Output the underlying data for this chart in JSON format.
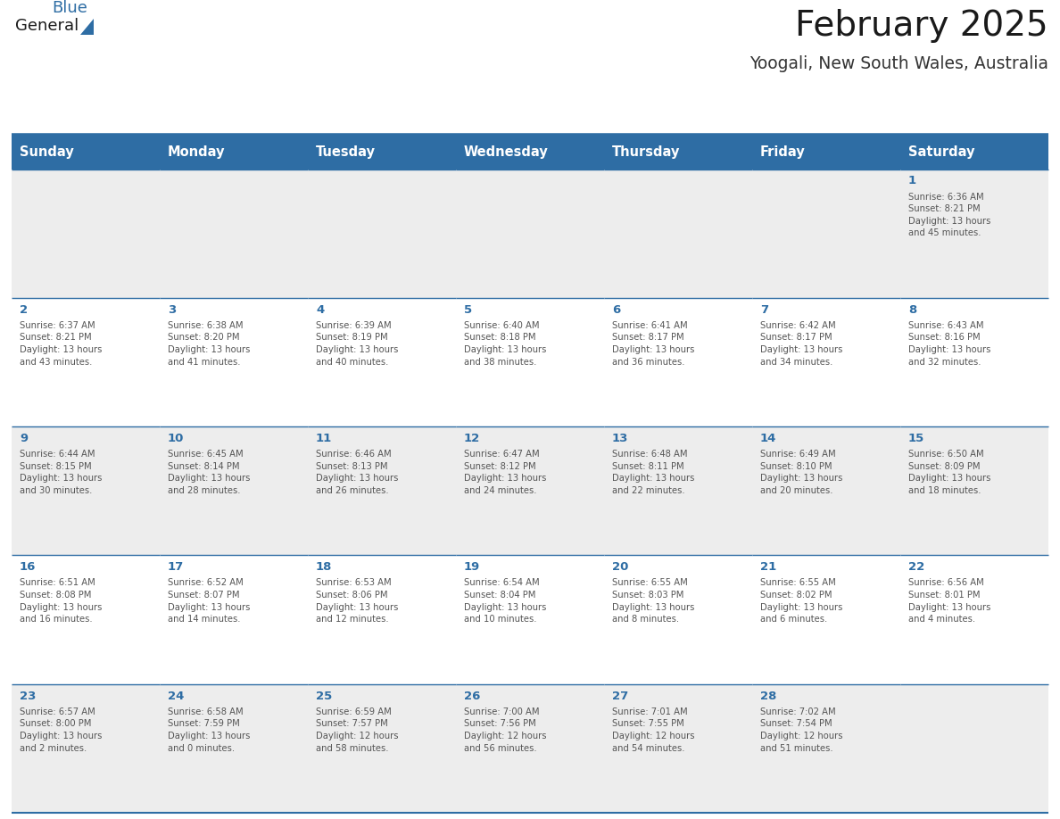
{
  "title": "February 2025",
  "subtitle": "Yoogali, New South Wales, Australia",
  "days_of_week": [
    "Sunday",
    "Monday",
    "Tuesday",
    "Wednesday",
    "Thursday",
    "Friday",
    "Saturday"
  ],
  "header_bg": "#2E6DA4",
  "header_text_color": "#FFFFFF",
  "cell_bg_odd": "#EDEDED",
  "cell_bg_even": "#FFFFFF",
  "border_color": "#2E6DA4",
  "title_color": "#1a1a1a",
  "subtitle_color": "#333333",
  "day_num_color": "#2E6DA4",
  "info_text_color": "#555555",
  "logo_general_color": "#1a1a1a",
  "logo_blue_color": "#2E6DA4",
  "weeks": [
    [
      {
        "day": null,
        "info": ""
      },
      {
        "day": null,
        "info": ""
      },
      {
        "day": null,
        "info": ""
      },
      {
        "day": null,
        "info": ""
      },
      {
        "day": null,
        "info": ""
      },
      {
        "day": null,
        "info": ""
      },
      {
        "day": 1,
        "info": "Sunrise: 6:36 AM\nSunset: 8:21 PM\nDaylight: 13 hours\nand 45 minutes."
      }
    ],
    [
      {
        "day": 2,
        "info": "Sunrise: 6:37 AM\nSunset: 8:21 PM\nDaylight: 13 hours\nand 43 minutes."
      },
      {
        "day": 3,
        "info": "Sunrise: 6:38 AM\nSunset: 8:20 PM\nDaylight: 13 hours\nand 41 minutes."
      },
      {
        "day": 4,
        "info": "Sunrise: 6:39 AM\nSunset: 8:19 PM\nDaylight: 13 hours\nand 40 minutes."
      },
      {
        "day": 5,
        "info": "Sunrise: 6:40 AM\nSunset: 8:18 PM\nDaylight: 13 hours\nand 38 minutes."
      },
      {
        "day": 6,
        "info": "Sunrise: 6:41 AM\nSunset: 8:17 PM\nDaylight: 13 hours\nand 36 minutes."
      },
      {
        "day": 7,
        "info": "Sunrise: 6:42 AM\nSunset: 8:17 PM\nDaylight: 13 hours\nand 34 minutes."
      },
      {
        "day": 8,
        "info": "Sunrise: 6:43 AM\nSunset: 8:16 PM\nDaylight: 13 hours\nand 32 minutes."
      }
    ],
    [
      {
        "day": 9,
        "info": "Sunrise: 6:44 AM\nSunset: 8:15 PM\nDaylight: 13 hours\nand 30 minutes."
      },
      {
        "day": 10,
        "info": "Sunrise: 6:45 AM\nSunset: 8:14 PM\nDaylight: 13 hours\nand 28 minutes."
      },
      {
        "day": 11,
        "info": "Sunrise: 6:46 AM\nSunset: 8:13 PM\nDaylight: 13 hours\nand 26 minutes."
      },
      {
        "day": 12,
        "info": "Sunrise: 6:47 AM\nSunset: 8:12 PM\nDaylight: 13 hours\nand 24 minutes."
      },
      {
        "day": 13,
        "info": "Sunrise: 6:48 AM\nSunset: 8:11 PM\nDaylight: 13 hours\nand 22 minutes."
      },
      {
        "day": 14,
        "info": "Sunrise: 6:49 AM\nSunset: 8:10 PM\nDaylight: 13 hours\nand 20 minutes."
      },
      {
        "day": 15,
        "info": "Sunrise: 6:50 AM\nSunset: 8:09 PM\nDaylight: 13 hours\nand 18 minutes."
      }
    ],
    [
      {
        "day": 16,
        "info": "Sunrise: 6:51 AM\nSunset: 8:08 PM\nDaylight: 13 hours\nand 16 minutes."
      },
      {
        "day": 17,
        "info": "Sunrise: 6:52 AM\nSunset: 8:07 PM\nDaylight: 13 hours\nand 14 minutes."
      },
      {
        "day": 18,
        "info": "Sunrise: 6:53 AM\nSunset: 8:06 PM\nDaylight: 13 hours\nand 12 minutes."
      },
      {
        "day": 19,
        "info": "Sunrise: 6:54 AM\nSunset: 8:04 PM\nDaylight: 13 hours\nand 10 minutes."
      },
      {
        "day": 20,
        "info": "Sunrise: 6:55 AM\nSunset: 8:03 PM\nDaylight: 13 hours\nand 8 minutes."
      },
      {
        "day": 21,
        "info": "Sunrise: 6:55 AM\nSunset: 8:02 PM\nDaylight: 13 hours\nand 6 minutes."
      },
      {
        "day": 22,
        "info": "Sunrise: 6:56 AM\nSunset: 8:01 PM\nDaylight: 13 hours\nand 4 minutes."
      }
    ],
    [
      {
        "day": 23,
        "info": "Sunrise: 6:57 AM\nSunset: 8:00 PM\nDaylight: 13 hours\nand 2 minutes."
      },
      {
        "day": 24,
        "info": "Sunrise: 6:58 AM\nSunset: 7:59 PM\nDaylight: 13 hours\nand 0 minutes."
      },
      {
        "day": 25,
        "info": "Sunrise: 6:59 AM\nSunset: 7:57 PM\nDaylight: 12 hours\nand 58 minutes."
      },
      {
        "day": 26,
        "info": "Sunrise: 7:00 AM\nSunset: 7:56 PM\nDaylight: 12 hours\nand 56 minutes."
      },
      {
        "day": 27,
        "info": "Sunrise: 7:01 AM\nSunset: 7:55 PM\nDaylight: 12 hours\nand 54 minutes."
      },
      {
        "day": 28,
        "info": "Sunrise: 7:02 AM\nSunset: 7:54 PM\nDaylight: 12 hours\nand 51 minutes."
      },
      {
        "day": null,
        "info": ""
      }
    ]
  ]
}
